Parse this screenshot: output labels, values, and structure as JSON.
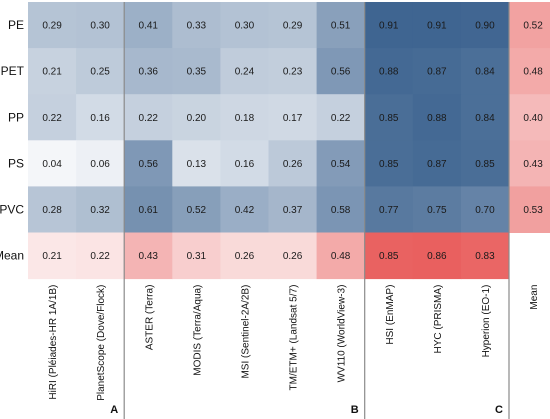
{
  "chart_data": {
    "type": "heatmap",
    "rows": [
      "PE",
      "PET",
      "PP",
      "PS",
      "PVC",
      "Mean"
    ],
    "columns": [
      "HiRI (Pléiades-HR 1A/1B)",
      "PlanetScope (Dove/Flock)",
      "ASTER (Terra)",
      "MODIS (Terra/Aqua)",
      "MSI (Sentinel-2A/2B)",
      "TM/ETM+ (Landsat 5/7)",
      "WV110 (WorldView-3)",
      "HSI (EnMAP)",
      "HYC (PRISMA)",
      "Hyperion (EO-1)",
      "Mean"
    ],
    "groups": [
      {
        "label": "A",
        "columns": [
          0,
          1
        ]
      },
      {
        "label": "B",
        "columns": [
          2,
          3,
          4,
          5,
          6
        ]
      },
      {
        "label": "C",
        "columns": [
          7,
          8,
          9
        ]
      }
    ],
    "values": [
      [
        0.29,
        0.3,
        0.41,
        0.33,
        0.3,
        0.29,
        0.51,
        0.91,
        0.91,
        0.9,
        0.52
      ],
      [
        0.21,
        0.25,
        0.36,
        0.35,
        0.24,
        0.23,
        0.56,
        0.88,
        0.87,
        0.84,
        0.48
      ],
      [
        0.22,
        0.16,
        0.22,
        0.2,
        0.18,
        0.17,
        0.22,
        0.85,
        0.88,
        0.84,
        0.4
      ],
      [
        0.04,
        0.06,
        0.56,
        0.13,
        0.16,
        0.26,
        0.54,
        0.85,
        0.87,
        0.85,
        0.43
      ],
      [
        0.28,
        0.32,
        0.61,
        0.52,
        0.42,
        0.37,
        0.58,
        0.77,
        0.75,
        0.7,
        0.53
      ],
      [
        0.21,
        0.22,
        0.43,
        0.31,
        0.26,
        0.26,
        0.48,
        0.85,
        0.86,
        0.83,
        null
      ]
    ],
    "labels": [
      [
        "0.29",
        "0.30",
        "0.41",
        "0.33",
        "0.30",
        "0.29",
        "0.51",
        "0.91",
        "0.91",
        "0.90",
        "0.52"
      ],
      [
        "0.21",
        "0.25",
        "0.36",
        "0.35",
        "0.24",
        "0.23",
        "0.56",
        "0.88",
        "0.87",
        "0.84",
        "0.48"
      ],
      [
        "0.22",
        "0.16",
        "0.22",
        "0.20",
        "0.18",
        "0.17",
        "0.22",
        "0.85",
        "0.88",
        "0.84",
        "0.40"
      ],
      [
        "0.04",
        "0.06",
        "0.56",
        "0.13",
        "0.16",
        "0.26",
        "0.54",
        "0.85",
        "0.87",
        "0.85",
        "0.43"
      ],
      [
        "0.28",
        "0.32",
        "0.61",
        "0.52",
        "0.42",
        "0.37",
        "0.58",
        "0.77",
        "0.75",
        "0.70",
        "0.53"
      ],
      [
        "0.21",
        "0.22",
        "0.43",
        "0.31",
        "0.26",
        "0.26",
        "0.48",
        "0.85",
        "0.86",
        "0.83",
        ""
      ]
    ],
    "colorscales": {
      "body": {
        "low": "#f4f6f9",
        "high": "#3f6591"
      },
      "mean": {
        "low": "#fbe7e7",
        "high": "#e9605f"
      }
    }
  }
}
